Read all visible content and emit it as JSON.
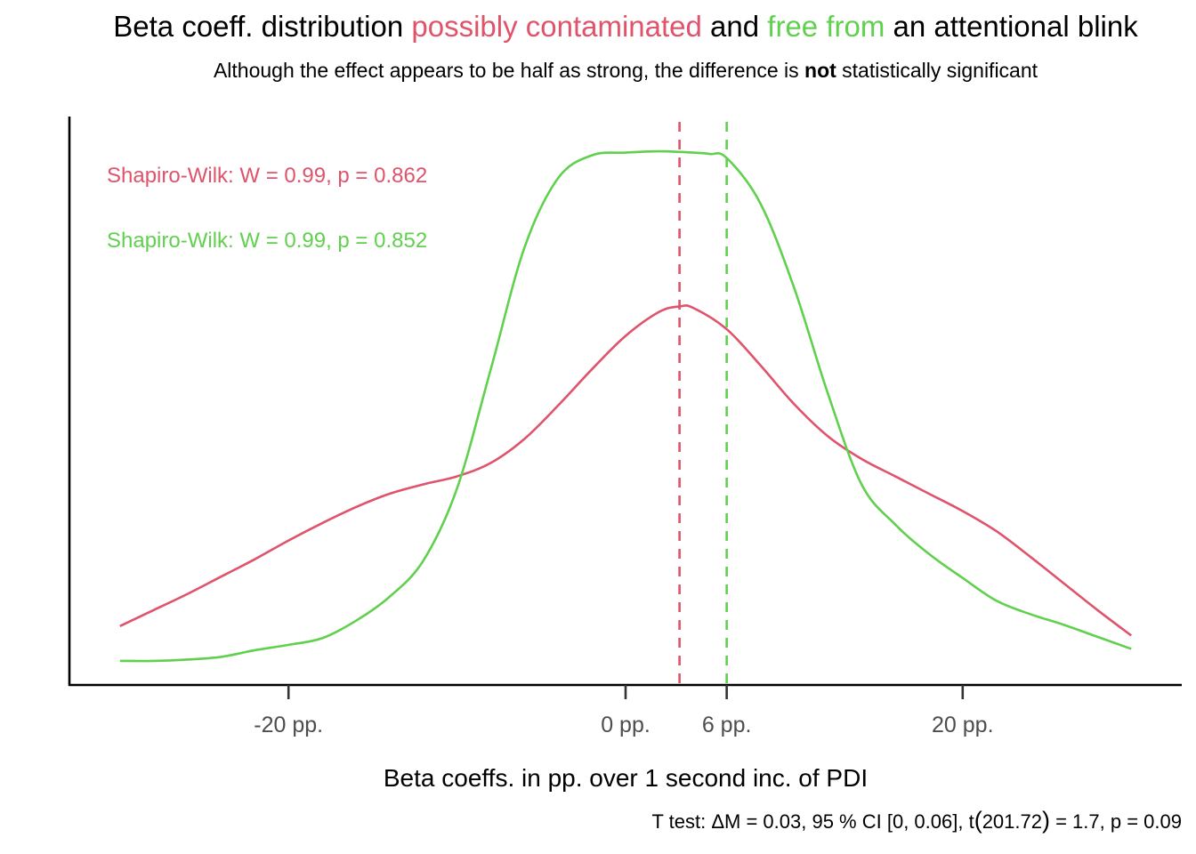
{
  "chart_data": {
    "type": "area",
    "title": {
      "part1": "Beta coeff. distribution ",
      "part2": "possibly contaminated",
      "part3": " and ",
      "part4": "free from",
      "part5": " an attentional blink"
    },
    "subtitle": {
      "part1": "Although the effect appears to be half as strong, the difference is ",
      "bold": "not",
      "part2": " statistically significant"
    },
    "xlabel": "Beta coeffs. in pp. over 1 second inc. of PDI",
    "ylabel": "",
    "caption": {
      "part1": "T test: ΔM = 0.03, 95 %  CI [0, 0.06], t",
      "paren_open": "(",
      "df": "201.72",
      "paren_close": ")",
      "part2": " = 1.7, p = 0.09"
    },
    "x_ticks": [
      {
        "value": -20,
        "label": "-20 pp."
      },
      {
        "value": 0,
        "label": "0 pp."
      },
      {
        "value": 6,
        "label": "6 pp."
      },
      {
        "value": 20,
        "label": "20 pp."
      }
    ],
    "xlim": [
      -33,
      33
    ],
    "ylim": [
      0,
      0.0425
    ],
    "colors": {
      "contaminated": "#DF536B",
      "free": "#61D04F",
      "axis": "#000000",
      "tick_text": "#4D4D4D"
    },
    "annotations": [
      {
        "series": "contaminated",
        "text": "Shapiro-Wilk: W = 0.99, p = 0.862"
      },
      {
        "series": "free",
        "text": "Shapiro-Wilk: W = 0.99, p = 0.852"
      }
    ],
    "series": [
      {
        "key": "contaminated",
        "mean": 3.2,
        "x": [
          -30,
          -28,
          -26,
          -24,
          -22,
          -20,
          -18,
          -16,
          -14,
          -12,
          -10,
          -8,
          -6,
          -4,
          -2,
          0,
          2,
          3.2,
          4,
          6,
          8,
          10,
          12,
          14,
          16,
          18,
          20,
          22,
          24,
          26,
          28,
          30
        ],
        "y": [
          0.0044,
          0.0056,
          0.0068,
          0.0081,
          0.0094,
          0.0108,
          0.0121,
          0.0133,
          0.0143,
          0.015,
          0.0156,
          0.0166,
          0.0184,
          0.0209,
          0.0236,
          0.0261,
          0.0279,
          0.0283,
          0.0282,
          0.0266,
          0.0239,
          0.021,
          0.0186,
          0.0169,
          0.0156,
          0.0143,
          0.013,
          0.0115,
          0.0096,
          0.0076,
          0.0056,
          0.0037
        ]
      },
      {
        "key": "free",
        "mean": 6,
        "x": [
          -30,
          -28,
          -26,
          -24,
          -22,
          -20,
          -18,
          -16,
          -14,
          -12,
          -10,
          -8,
          -6,
          -4,
          -2,
          0,
          2,
          4,
          5,
          6,
          8,
          10,
          12,
          14,
          16,
          18,
          20,
          22,
          24,
          26,
          28,
          30
        ],
        "y": [
          0.0018,
          0.0018,
          0.0019,
          0.0021,
          0.0026,
          0.003,
          0.0035,
          0.0048,
          0.0066,
          0.0093,
          0.0147,
          0.0236,
          0.0327,
          0.0379,
          0.0396,
          0.0398,
          0.0399,
          0.0398,
          0.0397,
          0.0394,
          0.036,
          0.0297,
          0.0218,
          0.015,
          0.012,
          0.0098,
          0.008,
          0.0063,
          0.0053,
          0.0045,
          0.0036,
          0.0027
        ]
      }
    ]
  }
}
